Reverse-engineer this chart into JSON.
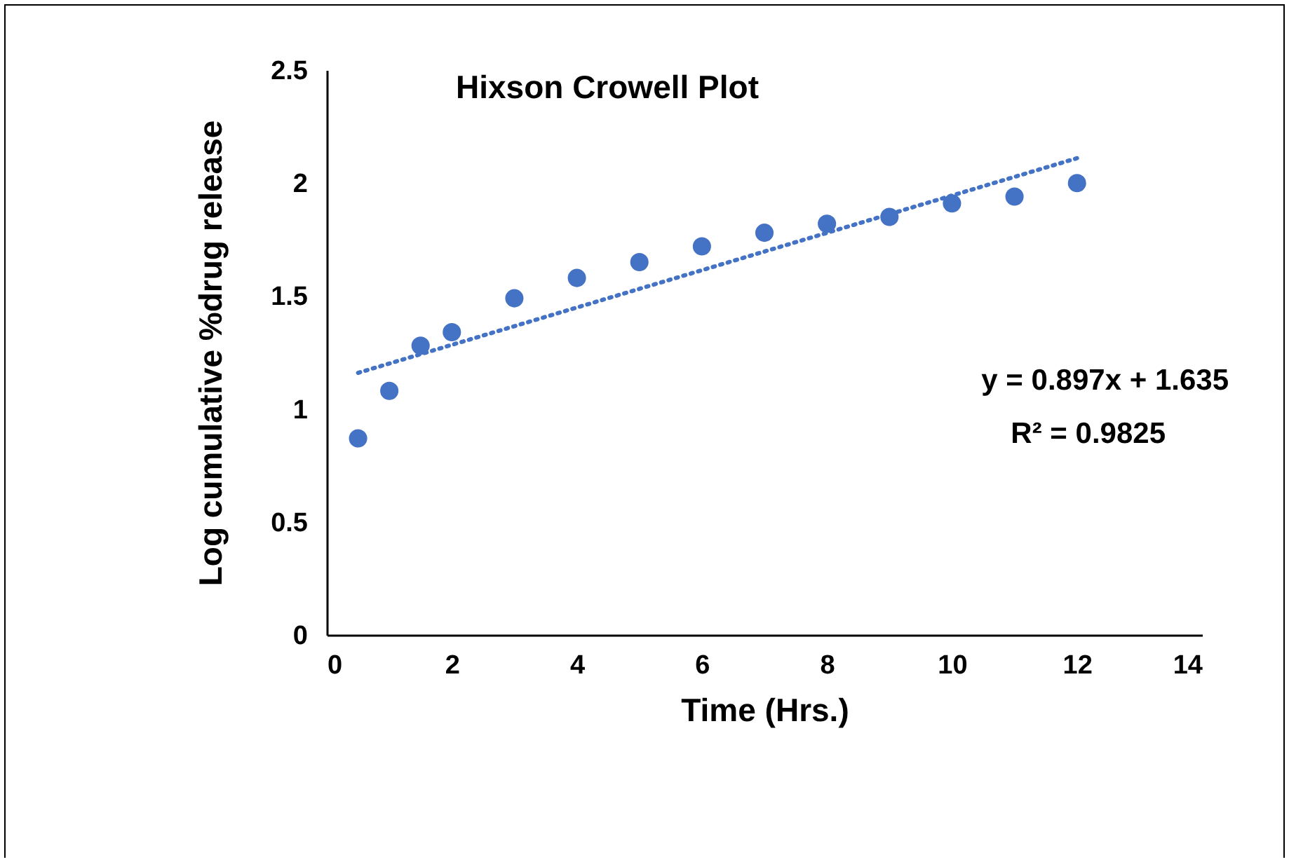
{
  "chart_data": {
    "type": "scatter",
    "title": "Hixson Crowell Plot",
    "xlabel": "Time (Hrs.)",
    "ylabel": "Log cumulative %drug release",
    "x": [
      0.5,
      1,
      1.5,
      2,
      3,
      4,
      5,
      6,
      7,
      8,
      9,
      10,
      11,
      12
    ],
    "series": [
      {
        "color": "#4472c4",
        "marker": "circle",
        "values": [
          0.87,
          1.08,
          1.28,
          1.34,
          1.49,
          1.58,
          1.65,
          1.72,
          1.78,
          1.82,
          1.85,
          1.91,
          1.94,
          2.0
        ]
      },
      {
        "type": "line",
        "color": "#4472c4",
        "line_style": "dotted",
        "marker": "none",
        "x": [
          0.5,
          12
        ],
        "values": [
          1.16,
          2.11
        ]
      }
    ],
    "xlim": [
      0,
      14
    ],
    "xticks": [
      0,
      2,
      4,
      6,
      8,
      10,
      12,
      14
    ],
    "ylim": [
      0,
      2.5
    ],
    "yticks": [
      0,
      0.5,
      1,
      1.5,
      2,
      2.5
    ],
    "grid": false,
    "annotations": [
      "y = 0.897x + 1.635",
      "R² = 0.9825"
    ]
  }
}
